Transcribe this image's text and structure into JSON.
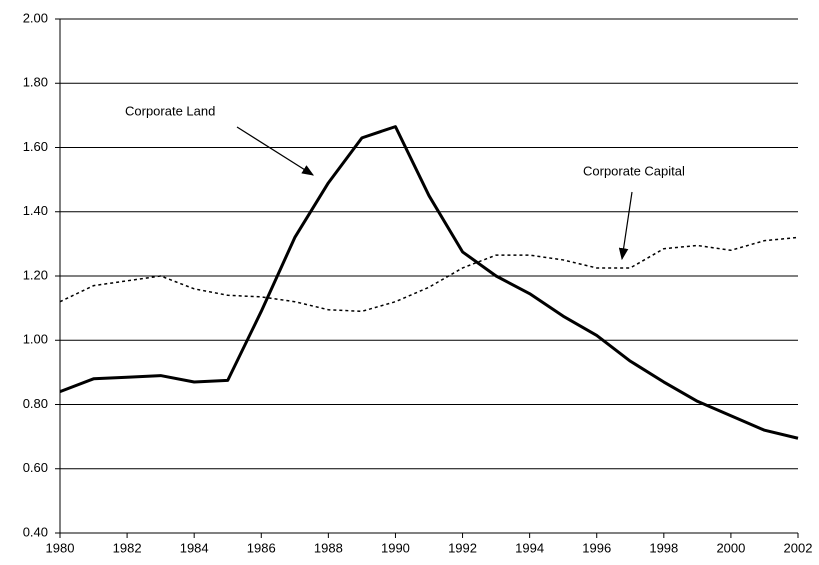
{
  "chart_data": {
    "type": "line",
    "x": [
      1980,
      1981,
      1982,
      1983,
      1984,
      1985,
      1986,
      1987,
      1988,
      1989,
      1990,
      1991,
      1992,
      1993,
      1994,
      1995,
      1996,
      1997,
      1998,
      1999,
      2000,
      2001,
      2002
    ],
    "series": [
      {
        "name": "Corporate Land",
        "color": "#000000",
        "line_style": "solid",
        "values": [
          0.84,
          0.88,
          0.885,
          0.89,
          0.87,
          0.875,
          1.09,
          1.32,
          1.49,
          1.63,
          1.665,
          1.45,
          1.275,
          1.2,
          1.145,
          1.075,
          1.015,
          0.935,
          0.87,
          0.81,
          0.765,
          0.72,
          0.695
        ]
      },
      {
        "name": "Corporate Capital",
        "color": "#000000",
        "line_style": "dotted",
        "values": [
          1.12,
          1.17,
          1.185,
          1.2,
          1.16,
          1.14,
          1.135,
          1.12,
          1.095,
          1.09,
          1.12,
          1.165,
          1.225,
          1.265,
          1.265,
          1.25,
          1.225,
          1.225,
          1.285,
          1.295,
          1.28,
          1.31,
          1.32
        ]
      }
    ],
    "xlim": [
      1980,
      2002
    ],
    "xticks": [
      1980,
      1982,
      1984,
      1986,
      1988,
      1990,
      1992,
      1994,
      1996,
      1998,
      2000,
      2002
    ],
    "ylim": [
      0.4,
      2.0
    ],
    "yticks": [
      {
        "value": 0.4,
        "label": "0.40"
      },
      {
        "value": 0.6,
        "label": "0.60"
      },
      {
        "value": 0.8,
        "label": "0.80"
      },
      {
        "value": 1.0,
        "label": "1.00"
      },
      {
        "value": 1.2,
        "label": "1.20"
      },
      {
        "value": 1.4,
        "label": "1.40"
      },
      {
        "value": 1.6,
        "label": "1.60"
      },
      {
        "value": 1.8,
        "label": "1.80"
      },
      {
        "value": 2.0,
        "label": "2.00"
      }
    ],
    "grid": true
  }
}
